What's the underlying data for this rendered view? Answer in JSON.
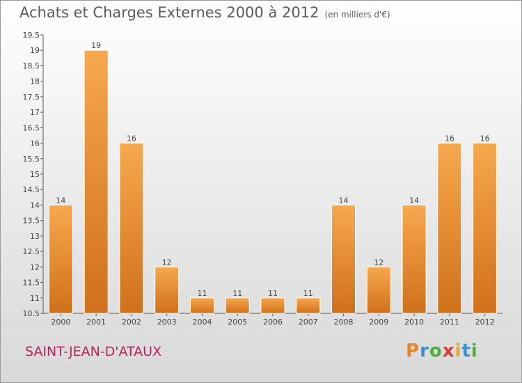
{
  "header": {
    "title": "Achats et Charges Externes 2000 à 2012",
    "unit": "(en milliers d'€)"
  },
  "footer": {
    "commune": "SAINT-JEAN-D'ATAUX",
    "logo": {
      "letters": [
        "P",
        "r",
        "o",
        "x",
        "i",
        "t",
        "i"
      ],
      "colors": [
        "#e8862a",
        "#3a8fd6",
        "#4caf3a",
        "#d63a3a",
        "#e8a82a",
        "#3a8fd6",
        "#4caf3a"
      ]
    }
  },
  "chart_data": {
    "type": "bar",
    "title": "Achats et Charges Externes 2000 à 2012",
    "subtitle": "(en milliers d'€)",
    "categories": [
      "2000",
      "2001",
      "2002",
      "2003",
      "2004",
      "2005",
      "2006",
      "2007",
      "2008",
      "2009",
      "2010",
      "2011",
      "2012"
    ],
    "values": [
      14,
      19,
      16,
      12,
      11,
      11,
      11,
      11,
      14,
      12,
      14,
      16,
      16
    ],
    "ylim": [
      10.5,
      19.5
    ],
    "yticks": [
      "10.5",
      "11",
      "11.5",
      "12",
      "12.5",
      "13",
      "13.5",
      "14",
      "14.5",
      "15",
      "15.5",
      "16",
      "16.5",
      "17",
      "17.5",
      "18",
      "18.5",
      "19",
      "19.5"
    ],
    "xlabel": "",
    "ylabel": "",
    "grid": false,
    "colors": {
      "bar_light": "#f7a84e",
      "bar_dark": "#d0701a"
    }
  }
}
